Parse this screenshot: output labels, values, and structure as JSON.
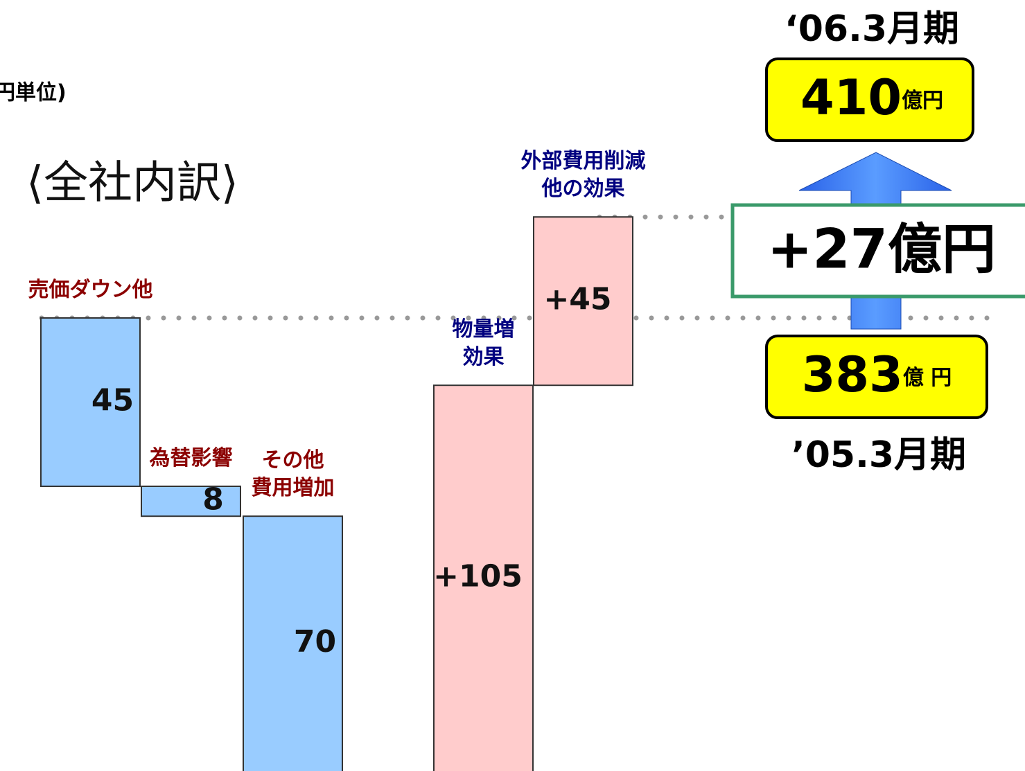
{
  "chart_data": {
    "type": "waterfall",
    "unit_note": "円単位)",
    "title": "⟨全社内訳⟩",
    "categories": [
      "売価ダウン他",
      "為替影響",
      "その他\n費用増加",
      "物量増\n効果",
      "外部費用削減\n他の効果"
    ],
    "values": [
      -45,
      -8,
      -70,
      105,
      45
    ],
    "value_labels": [
      "45",
      "8",
      "70",
      "+105",
      "+45"
    ],
    "decrease_color": "#99ccff",
    "increase_color": "#ffcccc",
    "decrease_label_color": "#8b0000",
    "increase_label_color": "#000080",
    "start": {
      "period": "’05.3月期",
      "value": 383,
      "unit": "億 円"
    },
    "end": {
      "period": "‘06.3月期",
      "value": 410,
      "unit": "億円"
    },
    "change": "+27億円"
  }
}
